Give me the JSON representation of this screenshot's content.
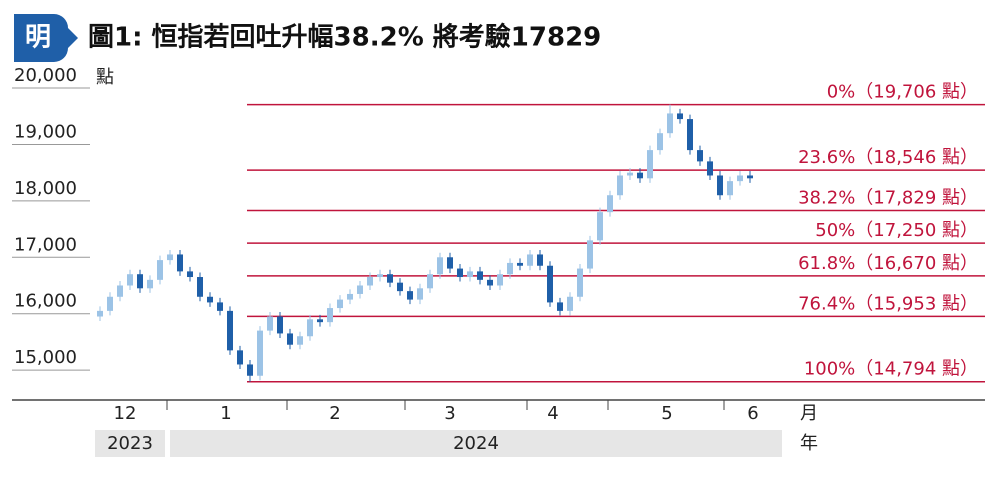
{
  "chart_data": {
    "type": "candlestick",
    "logo": "明",
    "title": "圖1: 恒指若回吐升幅38.2% 將考驗17829",
    "y_unit": "點",
    "ylim": [
      14470,
      20320
    ],
    "yticks": [
      {
        "value": 15000,
        "label": "15,000"
      },
      {
        "value": 16000,
        "label": "16,000"
      },
      {
        "value": 17000,
        "label": "17,000"
      },
      {
        "value": 18000,
        "label": "18,000"
      },
      {
        "value": 19000,
        "label": "19,000"
      },
      {
        "value": 20000,
        "label": "20,000"
      }
    ],
    "months": [
      "12",
      "1",
      "2",
      "3",
      "4",
      "5",
      "6"
    ],
    "month_unit": "月",
    "years": [
      "2023",
      "2024"
    ],
    "year_unit": "年",
    "up_color": "#9cc3e6",
    "down_color": "#1f5fa8",
    "level_color": "#c0143c",
    "open": [
      15950,
      16050,
      16300,
      16500,
      16700,
      16450,
      16600,
      16950,
      17050,
      16750,
      16650,
      16300,
      16200,
      16050,
      15350,
      15100,
      14900,
      15700,
      15950,
      15650,
      15450,
      15600,
      15900,
      15850,
      16100,
      16250,
      16350,
      16500,
      16650,
      16700,
      16550,
      16400,
      16250,
      16450,
      16700,
      17000,
      16800,
      16650,
      16750,
      16600,
      16500,
      16700,
      16900,
      16850,
      17050,
      16850,
      16200,
      16050,
      16300,
      16800,
      17300,
      17800,
      18100,
      18450,
      18500,
      18400,
      18900,
      19200,
      19550,
      19450,
      18900,
      18700,
      18450,
      18100,
      18350,
      18450
    ],
    "high": [
      16130,
      16380,
      16580,
      16780,
      16780,
      16680,
      17030,
      17130,
      17130,
      16830,
      16730,
      16380,
      16280,
      16130,
      15430,
      15180,
      15780,
      16030,
      16030,
      15730,
      15680,
      15980,
      15980,
      16180,
      16330,
      16430,
      16580,
      16730,
      16780,
      16780,
      16630,
      16480,
      16530,
      16780,
      17080,
      17080,
      16880,
      16830,
      16830,
      16680,
      16780,
      16980,
      16980,
      17130,
      17130,
      16930,
      16280,
      16380,
      16880,
      17380,
      17880,
      18180,
      18530,
      18580,
      18580,
      18980,
      19280,
      19706,
      19630,
      19530,
      18980,
      18780,
      18530,
      18430,
      18530,
      18530
    ],
    "low": [
      15870,
      15970,
      16220,
      16420,
      16370,
      16370,
      16520,
      16870,
      16670,
      16570,
      16220,
      16120,
      15970,
      15270,
      15020,
      14794,
      14820,
      15620,
      15570,
      15370,
      15370,
      15520,
      15770,
      15770,
      16020,
      16170,
      16270,
      16420,
      16570,
      16470,
      16320,
      16170,
      16170,
      16370,
      16620,
      16720,
      16570,
      16570,
      16520,
      16420,
      16420,
      16620,
      16770,
      16770,
      16770,
      16120,
      15970,
      15970,
      16220,
      16720,
      17220,
      17720,
      18020,
      18370,
      18320,
      18320,
      18820,
      19120,
      19370,
      18820,
      18620,
      18370,
      18020,
      18020,
      18270,
      18320
    ],
    "close": [
      16050,
      16300,
      16500,
      16700,
      16450,
      16600,
      16950,
      17050,
      16750,
      16650,
      16300,
      16200,
      16050,
      15350,
      15100,
      14900,
      15700,
      15950,
      15650,
      15450,
      15600,
      15900,
      15850,
      16100,
      16250,
      16350,
      16500,
      16650,
      16700,
      16550,
      16400,
      16250,
      16450,
      16700,
      17000,
      16800,
      16650,
      16750,
      16600,
      16500,
      16700,
      16900,
      16850,
      17050,
      16850,
      16200,
      16050,
      16300,
      16800,
      17300,
      17800,
      18100,
      18450,
      18500,
      18400,
      18900,
      19200,
      19550,
      19450,
      18900,
      18700,
      18450,
      18100,
      18350,
      18450,
      18400
    ],
    "levels": [
      {
        "value": 19706,
        "label": "0%（19,706 點）"
      },
      {
        "value": 18546,
        "label": "23.6%（18,546 點）"
      },
      {
        "value": 17829,
        "label": "38.2%（17,829 點）"
      },
      {
        "value": 17250,
        "label": "50%（17,250 點）"
      },
      {
        "value": 16670,
        "label": "61.8%（16,670 點）"
      },
      {
        "value": 15953,
        "label": "76.4%（15,953 點）"
      },
      {
        "value": 14794,
        "label": "100%（14,794 點）"
      }
    ]
  }
}
